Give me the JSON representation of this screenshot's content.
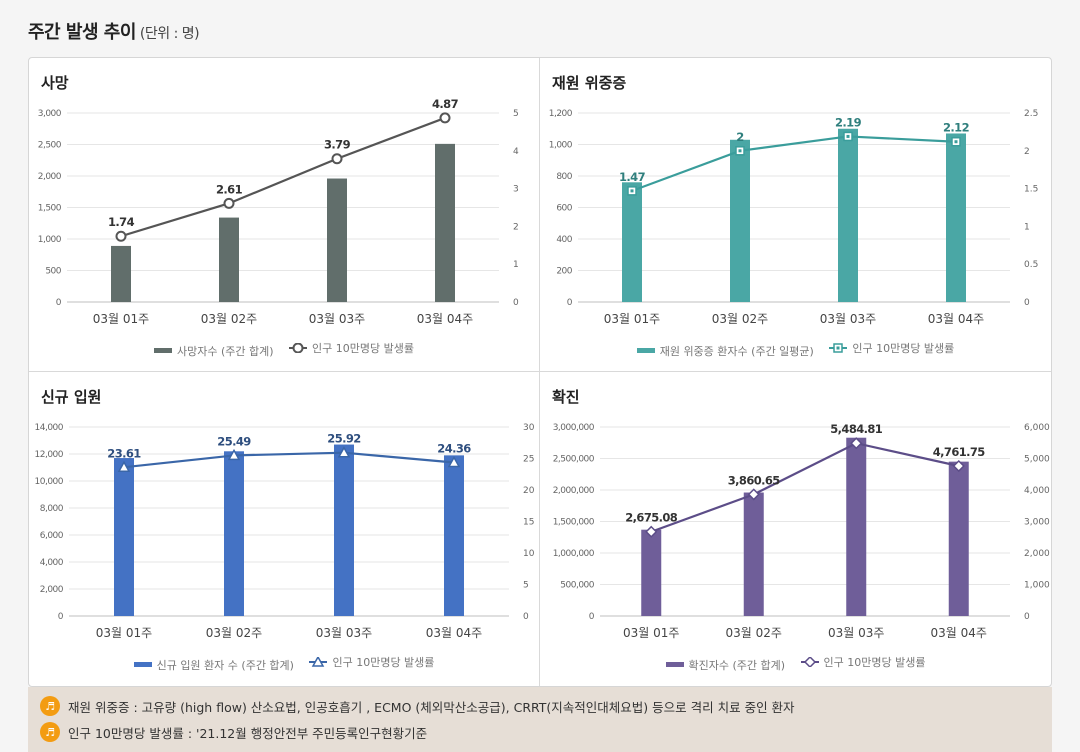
{
  "page": {
    "title": "주간 발생 추이",
    "unit": "(단위 : 명)"
  },
  "categories": [
    "03월 01주",
    "03월 02주",
    "03월 03주",
    "03월 04주"
  ],
  "chart_data": [
    {
      "type": "bar",
      "title": "사망",
      "categories": [
        "03월 01주",
        "03월 02주",
        "03월 03주",
        "03월 04주"
      ],
      "series": [
        {
          "name": "사망자수 (주간 합계)",
          "kind": "bar",
          "axis": "left",
          "values": [
            890,
            1340,
            1960,
            2510
          ]
        },
        {
          "name": "인구 10만명당 발생률",
          "kind": "line",
          "axis": "right",
          "values": [
            1.74,
            2.61,
            3.79,
            4.87
          ],
          "labels": [
            "1.74",
            "2.61",
            "3.79",
            "4.87"
          ]
        }
      ],
      "ylim": [
        0,
        3000
      ],
      "yticks": [
        0,
        500,
        1000,
        1500,
        2000,
        2500,
        3000
      ],
      "ytick_labels": [
        "0",
        "500",
        "1,000",
        "1,500",
        "2,000",
        "2,500",
        "3,000"
      ],
      "y2lim": [
        0,
        5
      ],
      "y2ticks": [
        0,
        1,
        2,
        3,
        4,
        5
      ],
      "y2tick_labels": [
        "0",
        "1",
        "2",
        "3",
        "4",
        "5"
      ],
      "bar_color": "#616e6b",
      "line_color": "#555555",
      "marker": "circle"
    },
    {
      "type": "bar",
      "title": "재원 위중증",
      "categories": [
        "03월 01주",
        "03월 02주",
        "03월 03주",
        "03월 04주"
      ],
      "series": [
        {
          "name": "재원 위중증 환자수 (주간 일평균)",
          "kind": "bar",
          "axis": "left",
          "values": [
            760,
            1030,
            1100,
            1070
          ]
        },
        {
          "name": "인구 10만명당 발생률",
          "kind": "line",
          "axis": "right",
          "values": [
            1.47,
            2.0,
            2.19,
            2.12
          ],
          "labels": [
            "1.47",
            "2",
            "2.19",
            "2.12"
          ]
        }
      ],
      "ylim": [
        0,
        1200
      ],
      "yticks": [
        0,
        200,
        400,
        600,
        800,
        1000,
        1200
      ],
      "ytick_labels": [
        "0",
        "200",
        "400",
        "600",
        "800",
        "1,000",
        "1,200"
      ],
      "y2lim": [
        0,
        2.5
      ],
      "y2ticks": [
        0,
        0.5,
        1,
        1.5,
        2,
        2.5
      ],
      "y2tick_labels": [
        "0",
        "0.5",
        "1",
        "1.5",
        "2",
        "2.5"
      ],
      "bar_color": "#4aa7a5",
      "line_color": "#3a9d9b",
      "marker": "square"
    },
    {
      "type": "bar",
      "title": "신규 입원",
      "categories": [
        "03월 01주",
        "03월 02주",
        "03월 03주",
        "03월 04주"
      ],
      "series": [
        {
          "name": "신규 입원 환자 수 (주간 합계)",
          "kind": "bar",
          "axis": "left",
          "values": [
            11700,
            12200,
            12700,
            11900
          ]
        },
        {
          "name": "인구 10만명당 발생률",
          "kind": "line",
          "axis": "right",
          "values": [
            23.61,
            25.49,
            25.92,
            24.36
          ],
          "labels": [
            "23.61",
            "25.49",
            "25.92",
            "24.36"
          ]
        }
      ],
      "ylim": [
        0,
        14000
      ],
      "yticks": [
        0,
        2000,
        4000,
        6000,
        8000,
        10000,
        12000,
        14000
      ],
      "ytick_labels": [
        "0",
        "2,000",
        "4,000",
        "6,000",
        "8,000",
        "10,000",
        "12,000",
        "14,000"
      ],
      "y2lim": [
        0,
        30
      ],
      "y2ticks": [
        0,
        5,
        10,
        15,
        20,
        25,
        30
      ],
      "y2tick_labels": [
        "0",
        "5",
        "10",
        "15",
        "20",
        "25",
        "30"
      ],
      "bar_color": "#4472c4",
      "line_color": "#3a66a8",
      "marker": "triangle"
    },
    {
      "type": "bar",
      "title": "확진",
      "categories": [
        "03월 01주",
        "03월 02주",
        "03월 03주",
        "03월 04주"
      ],
      "series": [
        {
          "name": "확진자수 (주간 합계)",
          "kind": "bar",
          "axis": "left",
          "values": [
            1370000,
            1960000,
            2830000,
            2450000
          ]
        },
        {
          "name": "인구 10만명당 발생률",
          "kind": "line",
          "axis": "right",
          "values": [
            2675.08,
            3860.65,
            5484.81,
            4761.75
          ],
          "labels": [
            "2,675.08",
            "3,860.65",
            "5,484.81",
            "4,761.75"
          ]
        }
      ],
      "ylim": [
        0,
        3000000
      ],
      "yticks": [
        0,
        500000,
        1000000,
        1500000,
        2000000,
        2500000,
        3000000
      ],
      "ytick_labels": [
        "0",
        "500,000",
        "1,000,000",
        "1,500,000",
        "2,000,000",
        "2,500,000",
        "3,000,000"
      ],
      "y2lim": [
        0,
        6000
      ],
      "y2ticks": [
        0,
        1000,
        2000,
        3000,
        4000,
        5000,
        6000
      ],
      "y2tick_labels": [
        "0",
        "1,000",
        "2,000",
        "3,000",
        "4,000",
        "5,000",
        "6,000"
      ],
      "bar_color": "#6f5e99",
      "line_color": "#5c4d88",
      "marker": "diamond"
    }
  ],
  "notes": [
    {
      "icon": "speaker-icon",
      "text": "재원 위중증 : 고유량 (high flow) 산소요법, 인공호흡기 , ECMO (체외막산소공급), CRRT(지속적인대체요법) 등으로 격리 치료 중인 환자"
    },
    {
      "icon": "speaker-icon",
      "text": "인구 10만명당 발생률 : '21.12월 행정안전부 주민등록인구현황기준"
    }
  ]
}
